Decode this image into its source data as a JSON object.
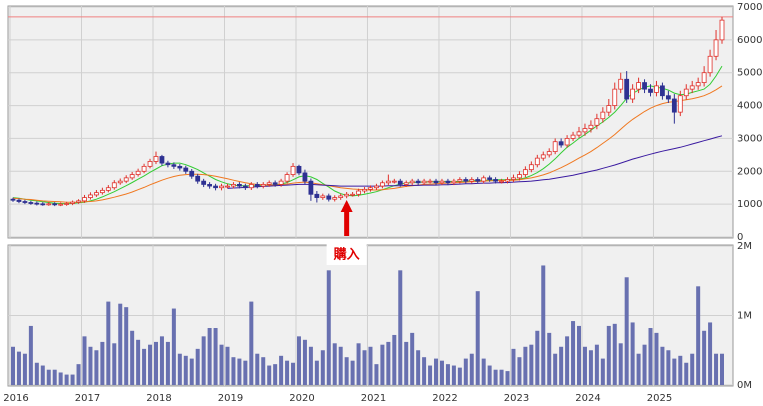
{
  "chart_data": {
    "type": "candlestick",
    "categories": [
      "2016",
      null,
      null,
      null,
      null,
      null,
      null,
      null,
      null,
      null,
      null,
      null,
      "2017",
      null,
      null,
      null,
      null,
      null,
      null,
      null,
      null,
      null,
      null,
      null,
      "2018",
      null,
      null,
      null,
      null,
      null,
      null,
      null,
      null,
      null,
      null,
      null,
      "2019",
      null,
      null,
      null,
      null,
      null,
      null,
      null,
      null,
      null,
      null,
      null,
      "2020",
      null,
      null,
      null,
      null,
      null,
      null,
      null,
      null,
      null,
      null,
      null,
      "2021",
      null,
      null,
      null,
      null,
      null,
      null,
      null,
      null,
      null,
      null,
      null,
      "2022",
      null,
      null,
      null,
      null,
      null,
      null,
      null,
      null,
      null,
      null,
      null,
      "2023",
      null,
      null,
      null,
      null,
      null,
      null,
      null,
      null,
      null,
      null,
      null,
      "2024",
      null,
      null,
      null,
      null,
      null,
      null,
      null,
      null,
      null,
      null,
      null,
      "2025",
      null,
      null,
      null,
      null,
      null,
      null,
      null,
      null,
      null,
      null,
      null
    ],
    "open": [
      1150,
      1120,
      1080,
      1050,
      1030,
      1010,
      1000,
      1010,
      990,
      1000,
      1020,
      1060,
      1100,
      1200,
      1280,
      1350,
      1420,
      1500,
      1650,
      1700,
      1800,
      1900,
      2000,
      2150,
      2300,
      2450,
      2250,
      2200,
      2150,
      2100,
      2000,
      1850,
      1700,
      1600,
      1550,
      1500,
      1550,
      1550,
      1600,
      1550,
      1500,
      1600,
      1550,
      1600,
      1650,
      1600,
      1700,
      1900,
      2150,
      1950,
      1700,
      1300,
      1200,
      1250,
      1150,
      1200,
      1250,
      1300,
      1300,
      1400,
      1450,
      1500,
      1550,
      1650,
      1700,
      1700,
      1600,
      1650,
      1700,
      1650,
      1700,
      1700,
      1650,
      1700,
      1650,
      1700,
      1750,
      1700,
      1750,
      1700,
      1800,
      1750,
      1700,
      1700,
      1750,
      1800,
      1900,
      2050,
      2200,
      2400,
      2500,
      2600,
      2900,
      2800,
      3000,
      3100,
      3200,
      3300,
      3400,
      3600,
      3800,
      4000,
      4500,
      4800,
      4200,
      4500,
      4700,
      4500,
      4400,
      4600,
      4300,
      4200,
      3800,
      4300,
      4500,
      4600,
      4700,
      5000,
      5500,
      6000
    ],
    "high": [
      1200,
      1170,
      1130,
      1100,
      1080,
      1060,
      1060,
      1060,
      1050,
      1070,
      1110,
      1150,
      1280,
      1360,
      1430,
      1500,
      1580,
      1730,
      1780,
      1880,
      1980,
      2080,
      2230,
      2380,
      2600,
      2500,
      2320,
      2270,
      2220,
      2170,
      2070,
      1920,
      1770,
      1670,
      1620,
      1620,
      1620,
      1670,
      1670,
      1620,
      1670,
      1670,
      1670,
      1720,
      1720,
      1770,
      1970,
      2250,
      2200,
      2050,
      1780,
      1400,
      1320,
      1320,
      1270,
      1320,
      1370,
      1370,
      1470,
      1520,
      1570,
      1620,
      1720,
      1900,
      1770,
      1770,
      1720,
      1770,
      1770,
      1770,
      1770,
      1770,
      1770,
      1770,
      1770,
      1820,
      1820,
      1820,
      1820,
      1870,
      1870,
      1820,
      1770,
      1820,
      1900,
      2000,
      2150,
      2300,
      2500,
      2600,
      2700,
      3000,
      3000,
      3100,
      3200,
      3350,
      3450,
      3550,
      3750,
      3950,
      4200,
      4700,
      5000,
      5050,
      4650,
      4850,
      4800,
      4650,
      4750,
      4700,
      4450,
      4350,
      4450,
      4650,
      4750,
      4850,
      5200,
      5700,
      6300,
      6700
    ],
    "low": [
      1070,
      1030,
      1000,
      980,
      960,
      950,
      950,
      940,
      940,
      950,
      970,
      1010,
      1040,
      1140,
      1220,
      1290,
      1360,
      1440,
      1590,
      1640,
      1740,
      1840,
      1940,
      2090,
      2220,
      2170,
      2120,
      2070,
      2020,
      1920,
      1770,
      1620,
      1520,
      1470,
      1420,
      1420,
      1480,
      1480,
      1480,
      1430,
      1430,
      1480,
      1480,
      1530,
      1530,
      1530,
      1630,
      1830,
      1880,
      1600,
      1100,
      1050,
      1130,
      1080,
      1080,
      1130,
      1180,
      1230,
      1230,
      1330,
      1380,
      1430,
      1480,
      1580,
      1630,
      1530,
      1530,
      1580,
      1580,
      1580,
      1630,
      1580,
      1580,
      1580,
      1580,
      1630,
      1630,
      1630,
      1630,
      1630,
      1680,
      1630,
      1630,
      1630,
      1670,
      1720,
      1820,
      1970,
      2120,
      2320,
      2420,
      2520,
      2720,
      2720,
      2920,
      3020,
      3080,
      3180,
      3280,
      3480,
      3680,
      3880,
      4380,
      4080,
      4080,
      4380,
      4380,
      4280,
      4280,
      4180,
      4080,
      3450,
      3680,
      4180,
      4380,
      4480,
      4580,
      4880,
      5380,
      5880
    ],
    "close": [
      1120,
      1080,
      1050,
      1030,
      1010,
      1000,
      1010,
      990,
      1000,
      1020,
      1060,
      1100,
      1200,
      1280,
      1350,
      1420,
      1500,
      1650,
      1700,
      1800,
      1900,
      2000,
      2150,
      2300,
      2450,
      2250,
      2200,
      2150,
      2100,
      2000,
      1850,
      1700,
      1600,
      1550,
      1500,
      1550,
      1550,
      1600,
      1550,
      1500,
      1600,
      1550,
      1600,
      1650,
      1600,
      1700,
      1900,
      2150,
      1950,
      1700,
      1300,
      1200,
      1250,
      1150,
      1200,
      1250,
      1300,
      1300,
      1400,
      1450,
      1500,
      1550,
      1650,
      1700,
      1700,
      1600,
      1650,
      1700,
      1650,
      1700,
      1700,
      1650,
      1700,
      1650,
      1700,
      1750,
      1700,
      1750,
      1700,
      1800,
      1750,
      1700,
      1700,
      1750,
      1800,
      1900,
      2050,
      2200,
      2400,
      2500,
      2600,
      2900,
      2800,
      3000,
      3100,
      3200,
      3300,
      3400,
      3600,
      3800,
      4000,
      4500,
      4800,
      4200,
      4500,
      4700,
      4500,
      4400,
      4600,
      4300,
      4200,
      3800,
      4300,
      4500,
      4600,
      4700,
      5000,
      5500,
      6000,
      6600
    ],
    "up_color": "#e0302a",
    "down_color": "#2e3192",
    "series": [
      {
        "color": "#33cc33",
        "values": [
          1200,
          1180,
          1150,
          1120,
          1100,
          1070,
          1050,
          1030,
          1020,
          1010,
          1020,
          1040,
          1060,
          1100,
          1150,
          1220,
          1300,
          1380,
          1470,
          1560,
          1660,
          1760,
          1860,
          1970,
          2070,
          2170,
          2220,
          2250,
          2250,
          2200,
          2130,
          2050,
          1950,
          1850,
          1750,
          1680,
          1620,
          1580,
          1560,
          1560,
          1560,
          1560,
          1570,
          1580,
          1590,
          1610,
          1660,
          1740,
          1830,
          1870,
          1830,
          1750,
          1630,
          1520,
          1400,
          1320,
          1270,
          1250,
          1270,
          1300,
          1340,
          1380,
          1440,
          1500,
          1560,
          1610,
          1640,
          1660,
          1670,
          1670,
          1680,
          1680,
          1680,
          1690,
          1690,
          1690,
          1700,
          1710,
          1720,
          1730,
          1730,
          1740,
          1740,
          1740,
          1750,
          1760,
          1800,
          1870,
          1960,
          2080,
          2220,
          2380,
          2560,
          2730,
          2860,
          3000,
          3120,
          3250,
          3380,
          3500,
          3640,
          3800,
          4000,
          4220,
          4370,
          4470,
          4560,
          4600,
          4560,
          4530,
          4470,
          4380,
          4330,
          4350,
          4400,
          4450,
          4500,
          4650,
          4900,
          5200
        ]
      },
      {
        "color": "#f07820",
        "values": [
          1180,
          1170,
          1150,
          1140,
          1120,
          1100,
          1090,
          1080,
          1070,
          1060,
          1060,
          1060,
          1070,
          1080,
          1100,
          1130,
          1170,
          1210,
          1260,
          1310,
          1370,
          1440,
          1510,
          1590,
          1660,
          1730,
          1790,
          1840,
          1880,
          1900,
          1910,
          1910,
          1900,
          1880,
          1850,
          1810,
          1770,
          1730,
          1690,
          1650,
          1620,
          1600,
          1590,
          1580,
          1580,
          1590,
          1610,
          1640,
          1660,
          1670,
          1650,
          1620,
          1590,
          1560,
          1530,
          1500,
          1480,
          1460,
          1450,
          1440,
          1430,
          1430,
          1440,
          1460,
          1480,
          1510,
          1540,
          1560,
          1580,
          1600,
          1610,
          1620,
          1630,
          1640,
          1650,
          1660,
          1670,
          1680,
          1690,
          1700,
          1710,
          1710,
          1720,
          1720,
          1730,
          1740,
          1770,
          1800,
          1840,
          1890,
          1950,
          2030,
          2110,
          2200,
          2300,
          2400,
          2500,
          2600,
          2720,
          2850,
          2980,
          3120,
          3280,
          3440,
          3580,
          3700,
          3820,
          3920,
          4000,
          4060,
          4100,
          4120,
          4150,
          4180,
          4210,
          4250,
          4300,
          4380,
          4480,
          4600
        ]
      },
      {
        "color": "#3a1aa0",
        "values": [
          null,
          null,
          null,
          null,
          null,
          null,
          null,
          null,
          null,
          null,
          null,
          null,
          null,
          null,
          null,
          null,
          null,
          null,
          null,
          null,
          null,
          null,
          null,
          null,
          null,
          null,
          null,
          null,
          null,
          null,
          null,
          null,
          null,
          null,
          null,
          null,
          1480,
          1490,
          1500,
          1510,
          1520,
          1530,
          1540,
          1550,
          1560,
          1570,
          1580,
          1590,
          1600,
          1600,
          1600,
          1590,
          1580,
          1570,
          1560,
          1550,
          1550,
          1550,
          1550,
          1550,
          1550,
          1550,
          1550,
          1560,
          1560,
          1560,
          1570,
          1570,
          1570,
          1580,
          1580,
          1580,
          1590,
          1590,
          1600,
          1610,
          1620,
          1620,
          1630,
          1640,
          1640,
          1650,
          1650,
          1660,
          1670,
          1680,
          1690,
          1700,
          1720,
          1740,
          1760,
          1790,
          1820,
          1850,
          1880,
          1920,
          1960,
          2000,
          2040,
          2090,
          2140,
          2190,
          2250,
          2310,
          2370,
          2420,
          2470,
          2520,
          2570,
          2610,
          2650,
          2690,
          2730,
          2780,
          2830,
          2880,
          2930,
          2980,
          3030,
          3080
        ]
      }
    ],
    "ylim": [
      0,
      7000
    ],
    "yticks": [
      0,
      1000,
      2000,
      3000,
      4000,
      5000,
      6000,
      7000
    ],
    "grid": true,
    "reference_line": {
      "value": 6700,
      "color": "#f08080"
    },
    "annotation": "購入",
    "volume": {
      "type": "bar",
      "color": "#6870b0",
      "values": [
        0.55,
        0.48,
        0.45,
        0.85,
        0.32,
        0.28,
        0.22,
        0.22,
        0.18,
        0.15,
        0.15,
        0.3,
        0.7,
        0.55,
        0.5,
        0.62,
        1.2,
        0.6,
        1.17,
        1.12,
        0.78,
        0.65,
        0.52,
        0.58,
        0.62,
        0.7,
        0.62,
        1.1,
        0.45,
        0.42,
        0.38,
        0.52,
        0.7,
        0.82,
        0.82,
        0.58,
        0.55,
        0.4,
        0.38,
        0.35,
        1.2,
        0.45,
        0.4,
        0.28,
        0.3,
        0.42,
        0.35,
        0.32,
        0.7,
        0.65,
        0.55,
        0.35,
        0.5,
        1.65,
        0.6,
        0.55,
        0.4,
        0.35,
        0.6,
        0.5,
        0.55,
        0.3,
        0.58,
        0.62,
        0.72,
        1.65,
        0.62,
        0.75,
        0.5,
        0.4,
        0.28,
        0.38,
        0.35,
        0.3,
        0.28,
        0.25,
        0.38,
        0.45,
        1.35,
        0.38,
        0.28,
        0.22,
        0.22,
        0.2,
        0.52,
        0.4,
        0.55,
        0.58,
        0.78,
        1.72,
        0.75,
        0.45,
        0.55,
        0.7,
        0.92,
        0.85,
        0.55,
        0.5,
        0.58,
        0.38,
        0.85,
        0.88,
        0.6,
        1.55,
        0.9,
        0.45,
        0.58,
        0.82,
        0.75,
        0.55,
        0.5,
        0.38,
        0.42,
        0.32,
        0.45,
        1.42,
        0.78,
        0.9,
        0.45,
        0.45
      ],
      "ylim": [
        0,
        2
      ],
      "yticks": [
        {
          "value": 0,
          "label": "0M"
        },
        {
          "value": 1,
          "label": "1M"
        },
        {
          "value": 2,
          "label": "2M"
        }
      ]
    }
  }
}
